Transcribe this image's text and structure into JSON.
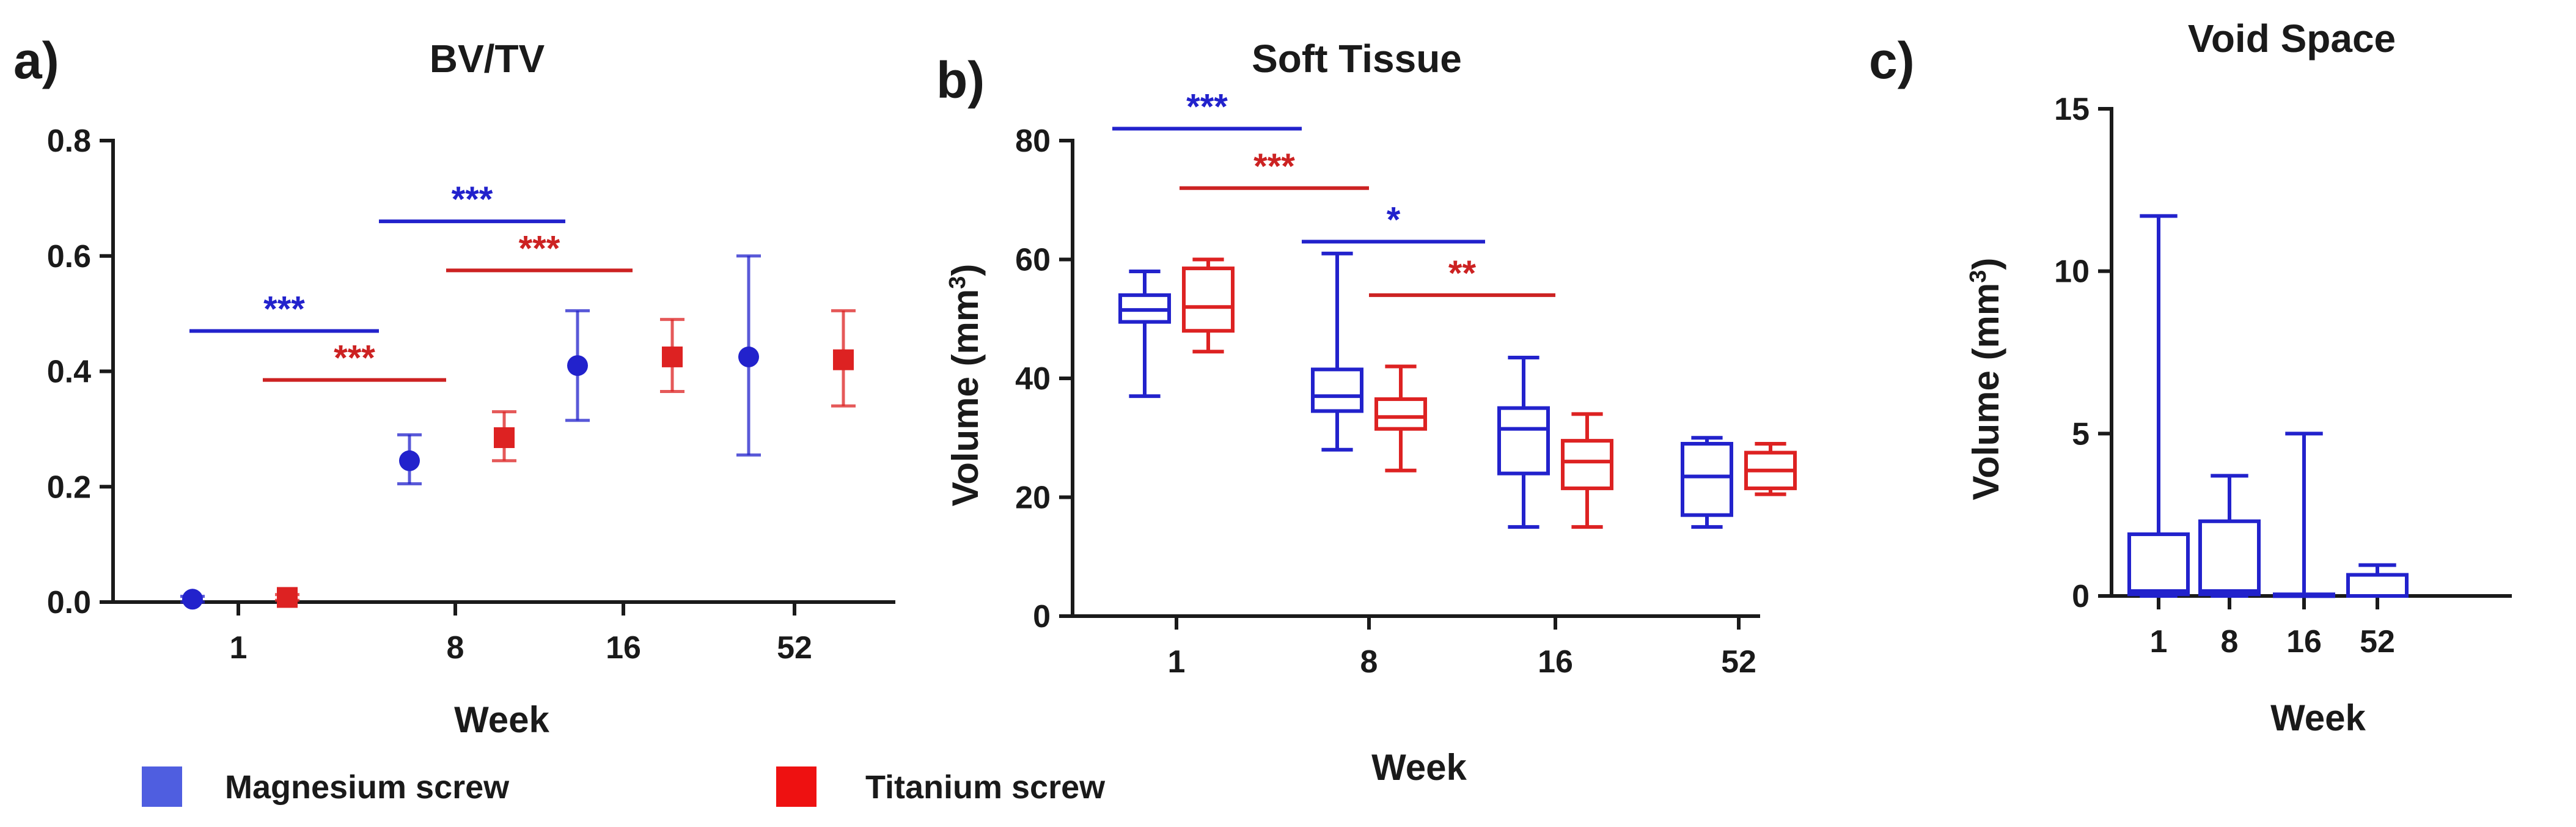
{
  "colors": {
    "magnesium": "#2222cc",
    "titanium": "#dd2222",
    "sig_blue": "#2222cc",
    "sig_red": "#cc2222",
    "legend_magnesium": "#4f5ee0",
    "legend_titanium": "#ee1111"
  },
  "legend": [
    {
      "label": "Magnesium screw",
      "color_key": "legend_magnesium"
    },
    {
      "label": "Titanium screw",
      "color_key": "legend_titanium"
    }
  ],
  "chart_data": [
    {
      "panel": "a)",
      "type": "scatter",
      "title": "BV/TV",
      "xlabel": "Week",
      "ylabel": "",
      "categories": [
        "1",
        "8",
        "16",
        "52"
      ],
      "ylim": [
        0,
        0.8
      ],
      "yticks": [
        "0.0",
        "0.2",
        "0.4",
        "0.6",
        "0.8"
      ],
      "series": [
        {
          "name": "Magnesium screw",
          "color_key": "magnesium",
          "marker": "circle",
          "points": [
            {
              "mean": 0.005,
              "low": 0.0,
              "high": 0.01
            },
            {
              "mean": 0.245,
              "low": 0.205,
              "high": 0.29
            },
            {
              "mean": 0.41,
              "low": 0.315,
              "high": 0.505
            },
            {
              "mean": 0.425,
              "low": 0.255,
              "high": 0.6
            }
          ]
        },
        {
          "name": "Titanium screw",
          "color_key": "titanium",
          "marker": "square",
          "points": [
            {
              "mean": 0.008,
              "low": 0.003,
              "high": 0.013
            },
            {
              "mean": 0.285,
              "low": 0.245,
              "high": 0.33
            },
            {
              "mean": 0.425,
              "low": 0.365,
              "high": 0.49
            },
            {
              "mean": 0.42,
              "low": 0.34,
              "high": 0.505
            }
          ]
        }
      ],
      "significance": [
        {
          "label": "***",
          "color_key": "sig_blue",
          "from": 0,
          "to": 1,
          "y": 0.47
        },
        {
          "label": "***",
          "color_key": "sig_red",
          "from": 0,
          "to": 1,
          "y": 0.385
        },
        {
          "label": "***",
          "color_key": "sig_blue",
          "from": 1,
          "to": 2,
          "y": 0.66
        },
        {
          "label": "***",
          "color_key": "sig_red",
          "from": 1,
          "to": 2,
          "y": 0.575
        }
      ]
    },
    {
      "panel": "b)",
      "type": "box",
      "title": "Soft Tissue",
      "xlabel": "Week",
      "ylabel": "Volume (mm",
      "ylabel_sup": "3",
      "ylabel_end": ")",
      "categories": [
        "1",
        "8",
        "16",
        "52"
      ],
      "ylim": [
        0,
        80
      ],
      "yticks": [
        "0",
        "20",
        "40",
        "60",
        "80"
      ],
      "series": [
        {
          "name": "Magnesium screw",
          "color_key": "magnesium",
          "boxes": [
            {
              "min": 37,
              "q1": 49.5,
              "median": 51.5,
              "q3": 54,
              "max": 58
            },
            {
              "min": 28,
              "q1": 34.5,
              "median": 37,
              "q3": 41.5,
              "max": 61
            },
            {
              "min": 15,
              "q1": 24,
              "median": 31.5,
              "q3": 35,
              "max": 43.5
            },
            {
              "min": 15,
              "q1": 17,
              "median": 23.5,
              "q3": 29,
              "max": 30
            }
          ]
        },
        {
          "name": "Titanium screw",
          "color_key": "titanium",
          "boxes": [
            {
              "min": 44.5,
              "q1": 48,
              "median": 52,
              "q3": 58.5,
              "max": 60
            },
            {
              "min": 24.5,
              "q1": 31.5,
              "median": 33.5,
              "q3": 36.5,
              "max": 42
            },
            {
              "min": 15,
              "q1": 21.5,
              "median": 26,
              "q3": 29.5,
              "max": 34
            },
            {
              "min": 20.5,
              "q1": 21.5,
              "median": 24.5,
              "q3": 27.5,
              "max": 29
            }
          ]
        }
      ],
      "significance": [
        {
          "label": "***",
          "color_key": "sig_blue",
          "from": 0,
          "to": 1,
          "y": 82
        },
        {
          "label": "***",
          "color_key": "sig_red",
          "from": 0,
          "to": 1,
          "y": 72
        },
        {
          "label": "*",
          "color_key": "sig_blue",
          "from": 1,
          "to": 2,
          "y": 63
        },
        {
          "label": "**",
          "color_key": "sig_red",
          "from": 1,
          "to": 2,
          "y": 54
        }
      ]
    },
    {
      "panel": "c)",
      "type": "box",
      "title": "Void Space",
      "xlabel": "Week",
      "ylabel": "Volume (mm",
      "ylabel_sup": "3",
      "ylabel_end": ")",
      "categories": [
        "1",
        "8",
        "16",
        "52"
      ],
      "ylim": [
        0,
        15
      ],
      "yticks": [
        "0",
        "5",
        "10",
        "15"
      ],
      "series": [
        {
          "name": "Magnesium screw",
          "color_key": "magnesium",
          "boxes": [
            {
              "min": 0,
              "q1": 0.05,
              "median": 0.15,
              "q3": 1.9,
              "max": 11.7
            },
            {
              "min": 0,
              "q1": 0.05,
              "median": 0.15,
              "q3": 2.3,
              "max": 3.7
            },
            {
              "min": 0,
              "q1": 0.0,
              "median": 0.0,
              "q3": 0.05,
              "max": 5.0
            },
            {
              "min": 0,
              "q1": 0.0,
              "median": 0.0,
              "q3": 0.65,
              "max": 0.95
            }
          ]
        }
      ],
      "significance": []
    }
  ]
}
